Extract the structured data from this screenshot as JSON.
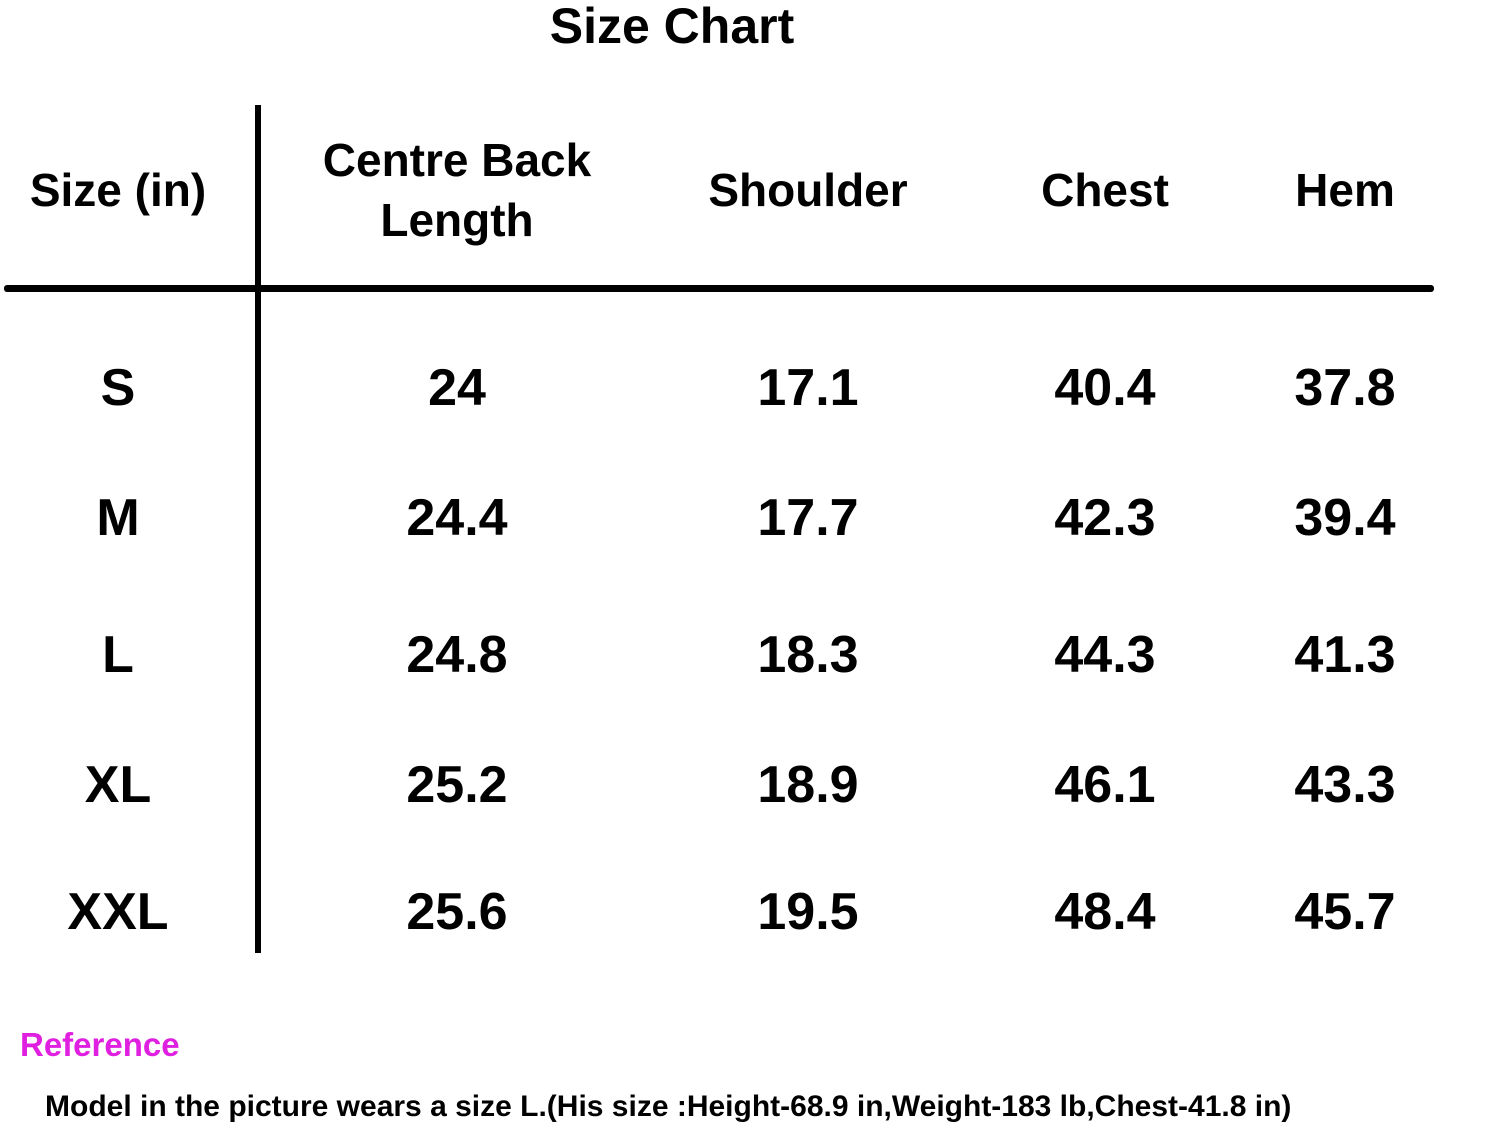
{
  "header": {
    "title": "Size Chart"
  },
  "table": {
    "columns": [
      "Size (in)",
      "Centre Back Length",
      "Shoulder",
      "Chest",
      "Hem"
    ],
    "rows": [
      [
        "S",
        "24",
        "17.1",
        "40.4",
        "37.8"
      ],
      [
        "M",
        "24.4",
        "17.7",
        "42.3",
        "39.4"
      ],
      [
        "L",
        "24.8",
        "18.3",
        "44.3",
        "41.3"
      ],
      [
        "XL",
        "25.2",
        "18.9",
        "46.1",
        "43.3"
      ],
      [
        "XXL",
        "25.6",
        "19.5",
        "48.4",
        "45.7"
      ]
    ]
  },
  "reference": {
    "label": "Reference",
    "note": "Model in the picture wears a size L.(His size :Height-68.9 in,Weight-183 lb,Chest-41.8 in)"
  }
}
